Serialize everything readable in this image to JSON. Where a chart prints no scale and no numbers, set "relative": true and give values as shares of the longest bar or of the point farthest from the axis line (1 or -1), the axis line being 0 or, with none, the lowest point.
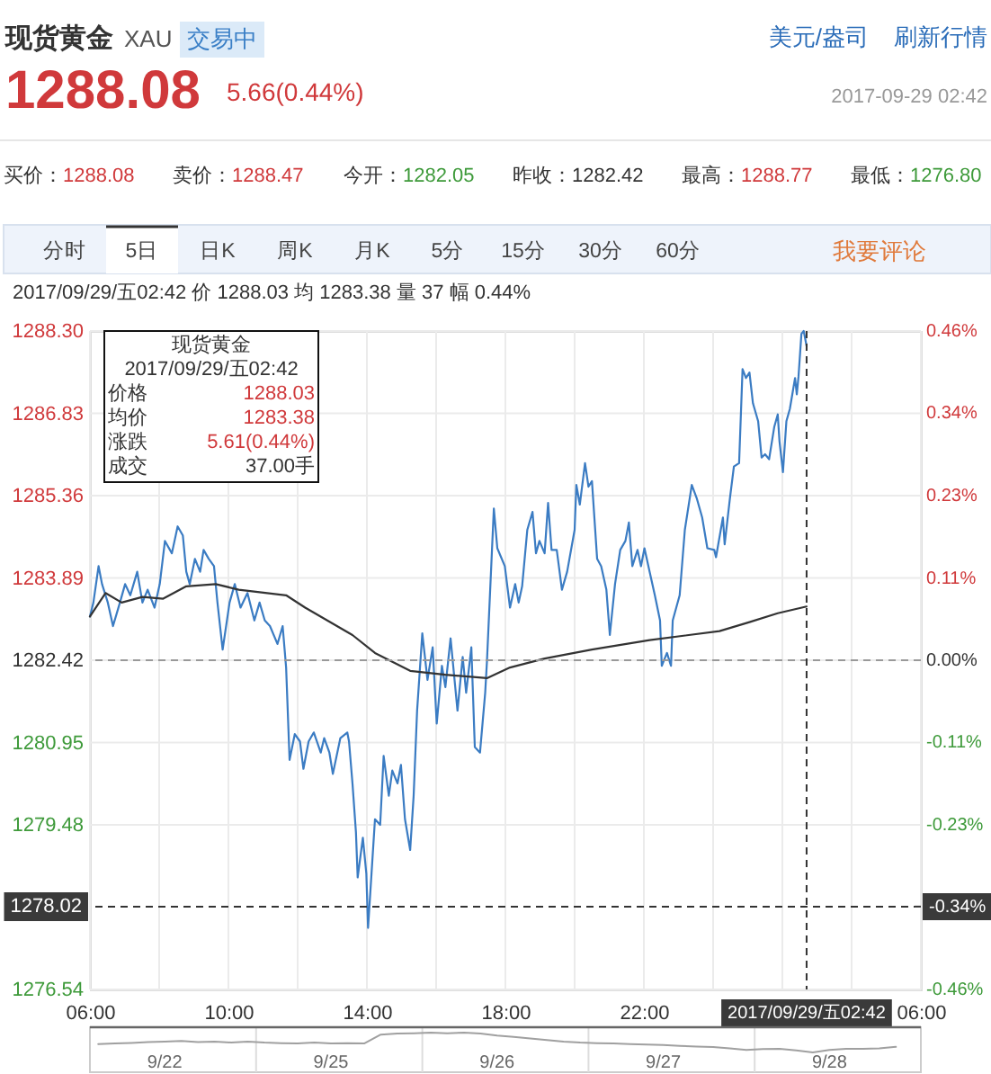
{
  "chart_data": [
    {
      "type": "other",
      "title": "现货黄金",
      "subtitle": "XAU",
      "annotations": [
        "交易中",
        "美元/盎司",
        "刷新行情",
        "1288.08",
        "5.66(0.44%)",
        "2017-09-29 02:42",
        "买价：",
        "1288.08",
        "卖价：",
        "1288.47",
        "今开：",
        "1282.05",
        "昨收：",
        "1282.42",
        "最高：",
        "1288.77",
        "最低：",
        "1276.80",
        "分时",
        "5日",
        "日K",
        "周K",
        "月K",
        "5分",
        "15分",
        "30分",
        "60分",
        "我要评论",
        "2017/09/29/五02:42 价 1288.03 均 1283.38 量 37 幅 0.44%"
      ]
    },
    {
      "type": "line",
      "xlim": [
        "2017-09-28T06:00",
        "2017-09-29T06:00"
      ],
      "xticks": [
        {
          "value": "2017-09-28T06:00",
          "label": "06:00"
        },
        {
          "value": "2017-09-28T08:00",
          "label": null
        },
        {
          "value": "2017-09-28T10:00",
          "label": "10:00"
        },
        {
          "value": "2017-09-28T12:00",
          "label": null
        },
        {
          "value": "2017-09-28T14:00",
          "label": "14:00"
        },
        {
          "value": "2017-09-28T16:00",
          "label": null
        },
        {
          "value": "2017-09-28T18:00",
          "label": "18:00"
        },
        {
          "value": "2017-09-28T20:00",
          "label": null
        },
        {
          "value": "2017-09-28T22:00",
          "label": "22:00"
        },
        {
          "value": "2017-09-29T00:00",
          "label": null
        },
        {
          "value": "2017-09-29T02:00",
          "label": null
        },
        {
          "value": "2017-09-29T04:00",
          "label": null
        },
        {
          "value": "2017-09-29T06:00",
          "label": "06:00"
        }
      ],
      "ylim": [
        1276.54,
        1288.3
      ],
      "yticks": [
        1276.54,
        1279.48,
        1280.95,
        1282.42,
        1283.89,
        1285.36,
        1286.83,
        {
          "value": 1288.3,
          "label": "1288.30"
        }
      ],
      "y2lim": [
        -0.4585,
        0.4585
      ],
      "y2ticks": [
        {
          "value": -0.4585,
          "label": "-0.46%"
        },
        {
          "value": -0.2292,
          "label": "-0.23%"
        },
        {
          "value": -0.1146,
          "label": "-0.11%"
        },
        {
          "value": 0,
          "label": "0.00%"
        },
        {
          "value": 0.1146,
          "label": "0.11%"
        },
        {
          "value": 0.2292,
          "label": "0.23%"
        },
        {
          "value": 0.3439,
          "label": "0.34%"
        },
        {
          "value": 0.4585,
          "label": "0.46%"
        }
      ],
      "grid": true,
      "series": [
        {
          "color": "#3b7cc3",
          "x": [
            "2017-09-28T06:00",
            "2017-09-28T06:06",
            "2017-09-28T06:15",
            "2017-09-28T06:21",
            "2017-09-28T06:31",
            "2017-09-28T06:40",
            "2017-09-28T06:52",
            "2017-09-28T07:01",
            "2017-09-28T07:10",
            "2017-09-28T07:22",
            "2017-09-28T07:31",
            "2017-09-28T07:40",
            "2017-09-28T07:52",
            "2017-09-28T08:01",
            "2017-09-28T08:10",
            "2017-09-28T08:22",
            "2017-09-28T08:32",
            "2017-09-28T08:41",
            "2017-09-28T08:47",
            "2017-09-28T08:53",
            "2017-09-28T09:02",
            "2017-09-28T09:11",
            "2017-09-28T09:17",
            "2017-09-28T09:26",
            "2017-09-28T09:35",
            "2017-09-28T09:41",
            "2017-09-28T09:50",
            "2017-09-28T10:02",
            "2017-09-28T10:11",
            "2017-09-28T10:21",
            "2017-09-28T10:33",
            "2017-09-28T10:45",
            "2017-09-28T10:54",
            "2017-09-28T11:03",
            "2017-09-28T11:12",
            "2017-09-28T11:25",
            "2017-09-28T11:34",
            "2017-09-28T11:40",
            "2017-09-28T11:46",
            "2017-09-28T11:55",
            "2017-09-28T12:04",
            "2017-09-28T12:10",
            "2017-09-28T12:19",
            "2017-09-28T12:28",
            "2017-09-28T12:40",
            "2017-09-28T12:46",
            "2017-09-28T12:55",
            "2017-09-28T13:01",
            "2017-09-28T13:14",
            "2017-09-28T13:26",
            "2017-09-28T13:29",
            "2017-09-28T13:35",
            "2017-09-28T13:41",
            "2017-09-28T13:44",
            "2017-09-28T13:53",
            "2017-09-28T13:59",
            "2017-09-28T14:02",
            "2017-09-28T14:08",
            "2017-09-28T14:14",
            "2017-09-28T14:23",
            "2017-09-28T14:29",
            "2017-09-28T14:38",
            "2017-09-28T14:44",
            "2017-09-28T14:53",
            "2017-09-28T14:59",
            "2017-09-28T15:06",
            "2017-09-28T15:15",
            "2017-09-28T15:21",
            "2017-09-28T15:27",
            "2017-09-28T15:36",
            "2017-09-28T15:45",
            "2017-09-28T15:54",
            "2017-09-28T16:01",
            "2017-09-28T16:10",
            "2017-09-28T16:16",
            "2017-09-28T16:25",
            "2017-09-28T16:37",
            "2017-09-28T16:46",
            "2017-09-28T16:52",
            "2017-09-28T17:01",
            "2017-09-28T17:07",
            "2017-09-28T17:16",
            "2017-09-28T17:25",
            "2017-09-28T17:28",
            "2017-09-28T17:40",
            "2017-09-28T17:46",
            "2017-09-28T17:59",
            "2017-09-28T18:08",
            "2017-09-28T18:17",
            "2017-09-28T18:23",
            "2017-09-28T18:29",
            "2017-09-28T18:38",
            "2017-09-28T18:47",
            "2017-09-28T18:53",
            "2017-09-28T18:59",
            "2017-09-28T19:08",
            "2017-09-28T19:14",
            "2017-09-28T19:20",
            "2017-09-28T19:29",
            "2017-09-28T19:38",
            "2017-09-28T19:47",
            "2017-09-28T20:00",
            "2017-09-28T20:03",
            "2017-09-28T20:09",
            "2017-09-28T20:18",
            "2017-09-28T20:24",
            "2017-09-28T20:30",
            "2017-09-28T20:39",
            "2017-09-28T20:46",
            "2017-09-28T20:55",
            "2017-09-28T21:01",
            "2017-09-28T21:10",
            "2017-09-28T21:19",
            "2017-09-28T21:28",
            "2017-09-28T21:34",
            "2017-09-28T21:40",
            "2017-09-28T21:49",
            "2017-09-28T21:55",
            "2017-09-28T22:01",
            "2017-09-28T22:10",
            "2017-09-28T22:19",
            "2017-09-28T22:28",
            "2017-09-28T22:31",
            "2017-09-28T22:40",
            "2017-09-28T22:47",
            "2017-09-28T22:50",
            "2017-09-28T23:02",
            "2017-09-28T23:11",
            "2017-09-28T23:23",
            "2017-09-28T23:32",
            "2017-09-28T23:41",
            "2017-09-28T23:50",
            "2017-09-29T00:02",
            "2017-09-29T00:05",
            "2017-09-29T00:17",
            "2017-09-29T00:20",
            "2017-09-29T00:29",
            "2017-09-29T00:36",
            "2017-09-29T00:45",
            "2017-09-29T00:51",
            "2017-09-29T00:57",
            "2017-09-29T01:03",
            "2017-09-29T01:09",
            "2017-09-29T01:18",
            "2017-09-29T01:24",
            "2017-09-29T01:30",
            "2017-09-29T01:37",
            "2017-09-29T01:46",
            "2017-09-29T01:52",
            "2017-09-29T01:55",
            "2017-09-29T02:01",
            "2017-09-29T02:07",
            "2017-09-29T02:13",
            "2017-09-29T02:22",
            "2017-09-29T02:25",
            "2017-09-29T02:28",
            "2017-09-29T02:33",
            "2017-09-29T02:37",
            "2017-09-29T02:42"
          ],
          "values": [
            1283.2,
            1283.45,
            1284.1,
            1283.78,
            1283.45,
            1283.03,
            1283.45,
            1283.78,
            1283.58,
            1284.0,
            1283.45,
            1283.68,
            1283.36,
            1283.78,
            1284.55,
            1284.33,
            1284.81,
            1284.65,
            1284.0,
            1283.78,
            1284.23,
            1284.0,
            1284.39,
            1284.23,
            1284.1,
            1283.45,
            1282.61,
            1283.45,
            1283.78,
            1283.36,
            1283.62,
            1283.13,
            1283.45,
            1283.13,
            1283.03,
            1282.71,
            1283.03,
            1282.29,
            1280.64,
            1281.1,
            1280.97,
            1280.48,
            1280.97,
            1281.13,
            1280.77,
            1281.03,
            1280.77,
            1280.39,
            1281.03,
            1281.13,
            1280.97,
            1280.22,
            1279.35,
            1278.54,
            1279.25,
            1278.61,
            1277.64,
            1278.61,
            1279.58,
            1279.48,
            1280.71,
            1280.0,
            1280.45,
            1280.22,
            1280.55,
            1279.58,
            1279.03,
            1280.0,
            1281.52,
            1282.9,
            1282.07,
            1282.65,
            1281.29,
            1282.32,
            1281.94,
            1282.81,
            1281.52,
            1282.48,
            1281.84,
            1282.65,
            1280.87,
            1280.77,
            1281.84,
            1282.39,
            1285.13,
            1284.42,
            1284.1,
            1283.36,
            1283.78,
            1283.45,
            1283.74,
            1284.75,
            1285.07,
            1284.33,
            1284.55,
            1284.33,
            1285.23,
            1284.39,
            1284.39,
            1283.68,
            1284.0,
            1284.75,
            1285.55,
            1285.2,
            1285.94,
            1285.52,
            1285.62,
            1284.23,
            1284.1,
            1283.68,
            1282.87,
            1283.78,
            1284.39,
            1284.55,
            1284.88,
            1284.1,
            1284.39,
            1284.1,
            1284.42,
            1284.0,
            1283.58,
            1283.13,
            1282.32,
            1282.55,
            1282.32,
            1283.13,
            1283.58,
            1284.75,
            1285.55,
            1285.3,
            1284.97,
            1284.42,
            1284.39,
            1284.26,
            1284.97,
            1284.49,
            1285.3,
            1285.88,
            1285.94,
            1287.62,
            1287.46,
            1287.56,
            1287.01,
            1286.69,
            1286.04,
            1286.1,
            1286.01,
            1286.59,
            1286.81,
            1286.33,
            1285.78,
            1286.69,
            1286.91,
            1287.46,
            1287.17,
            1287.49,
            1288.25,
            1288.3,
            1288.03
          ]
        },
        {
          "color": "#333333",
          "x": [
            "2017-09-28T06:00",
            "2017-09-28T06:27",
            "2017-09-28T06:55",
            "2017-09-28T07:31",
            "2017-09-28T08:07",
            "2017-09-28T08:47",
            "2017-09-28T09:38",
            "2017-09-28T10:18",
            "2017-09-28T11:40",
            "2017-09-28T12:13",
            "2017-09-28T13:35",
            "2017-09-28T14:14",
            "2017-09-28T15:15",
            "2017-09-28T16:16",
            "2017-09-28T17:28",
            "2017-09-28T18:08",
            "2017-09-28T19:08",
            "2017-09-28T20:30",
            "2017-09-28T22:10",
            "2017-09-29T00:11",
            "2017-09-29T01:03",
            "2017-09-29T01:52",
            "2017-09-29T02:42"
          ],
          "values": [
            1283.2,
            1283.62,
            1283.45,
            1283.55,
            1283.52,
            1283.74,
            1283.78,
            1283.68,
            1283.58,
            1283.36,
            1282.87,
            1282.55,
            1282.23,
            1282.16,
            1282.1,
            1282.29,
            1282.45,
            1282.61,
            1282.78,
            1282.94,
            1283.1,
            1283.26,
            1283.38
          ]
        }
      ],
      "ref_lines": [
        {
          "axis": "y",
          "value": 1282.42,
          "color": "#999999",
          "line_style": "dashed"
        },
        {
          "axis": "y",
          "value": 1278.02,
          "label": "1278.02",
          "color": "#333333",
          "line_style": "dashed"
        },
        {
          "axis": "x",
          "value": "2017-09-29T02:42",
          "label": "2017/09/29/五02:42",
          "color": "#333333",
          "line_style": "dashed"
        }
      ],
      "annotations": [
        "现货黄金",
        "2017/09/29/五02:42",
        "价格",
        "1288.03",
        "均价",
        "1283.38",
        "涨跌",
        "5.61(0.44%)",
        "成交",
        "37.00手",
        {
          "text": "-0.34%",
          "x": "2017-09-29T06:00",
          "y": 1278.02
        }
      ]
    },
    {
      "type": "line",
      "relative": true,
      "color": "#a0a0a0",
      "categories": [
        null,
        null,
        null,
        null,
        "9/22",
        null,
        null,
        null,
        null,
        null,
        null,
        null,
        null,
        null,
        "9/25",
        null,
        null,
        null,
        null,
        null,
        null,
        null,
        null,
        null,
        "9/26",
        null,
        null,
        null,
        null,
        null,
        null,
        null,
        null,
        null,
        "9/27",
        null,
        null,
        null,
        null,
        null,
        null,
        null,
        null,
        null,
        "9/28",
        null,
        null,
        null,
        null,
        null
      ],
      "values": [
        0.42,
        0.45,
        0.48,
        0.52,
        0.55,
        0.58,
        0.52,
        0.55,
        0.5,
        0.55,
        0.5,
        0.47,
        0.45,
        0.5,
        0.45,
        0.47,
        0.45,
        0.9,
        0.95,
        0.97,
        1,
        0.97,
        1,
        0.95,
        0.85,
        0.78,
        0.7,
        0.62,
        0.55,
        0.5,
        0.47,
        0.45,
        0.42,
        0.4,
        0.37,
        0.33,
        0.3,
        0.27,
        0.2,
        0.12,
        0.17,
        0.18,
        0.1,
        0,
        0.13,
        0.18,
        0.18,
        0.21,
        0.28,
        null
      ]
    }
  ]
}
